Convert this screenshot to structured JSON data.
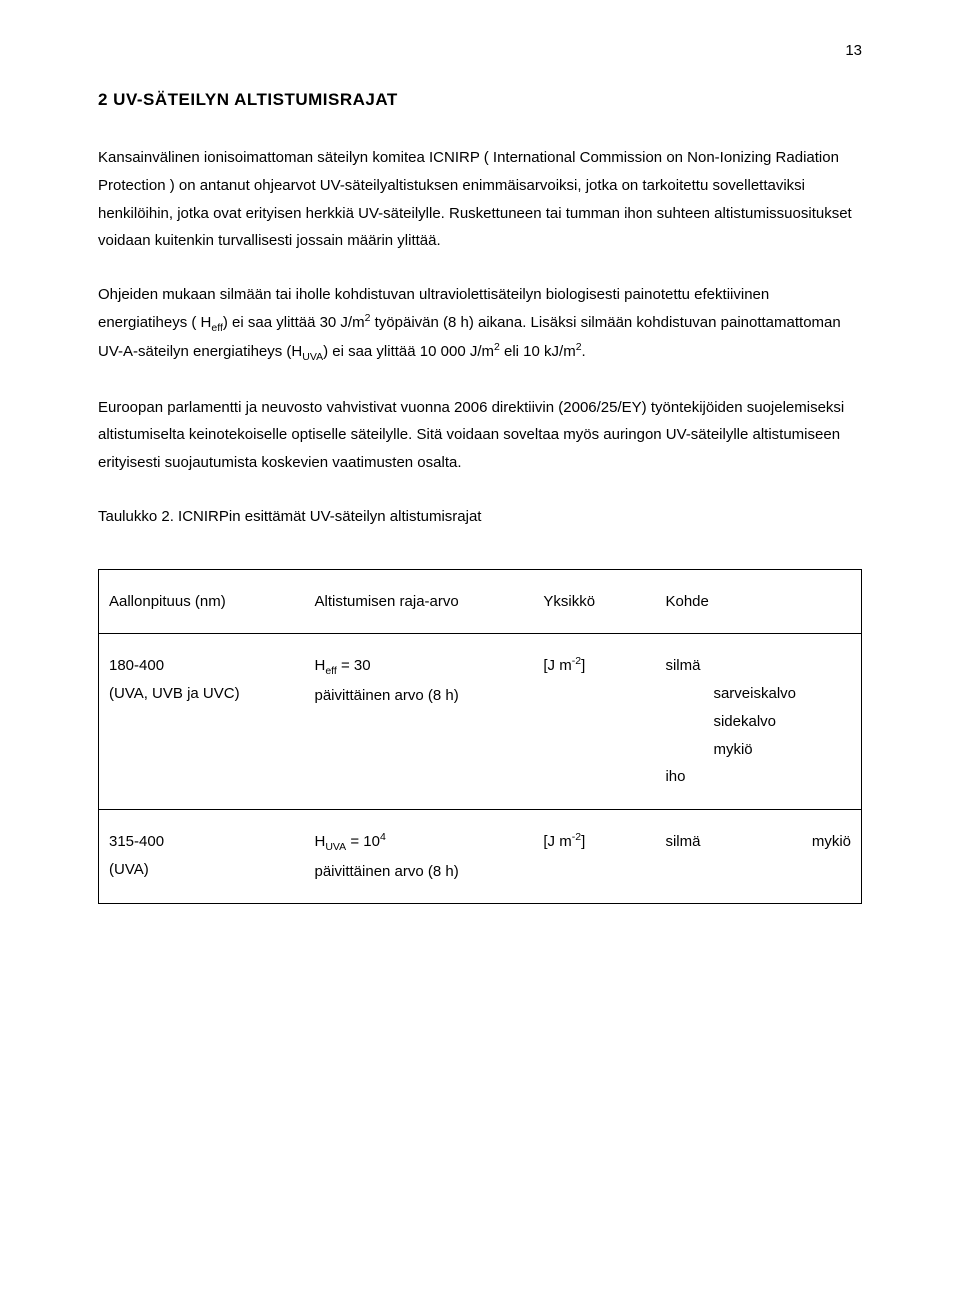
{
  "page_number": "13",
  "heading": "2 UV-SÄTEILYN ALTISTUMISRAJAT",
  "paragraphs": {
    "p1": "Kansainvälinen ionisoimattoman säteilyn komitea ICNIRP ( International Commission on Non-Ionizing Radiation Protection ) on antanut ohjearvot UV-säteilyaltistuksen enimmäisarvoiksi, jotka on tarkoitettu sovellettaviksi henkilöihin, jotka ovat erityisen herkkiä UV-säteilylle. Ruskettuneen tai tumman ihon suhteen altistumissuositukset voidaan kuitenkin turvallisesti jossain määrin ylittää.",
    "p2a": "Ohjeiden mukaan silmään tai iholle kohdistuvan ultraviolettisäteilyn biologisesti painotettu efektiivinen energiatiheys ( H",
    "p2a_sub": "eff",
    "p2b": ") ei saa ylittää 30 J/m",
    "p2b_sup": "2",
    "p2c": " työpäivän (8 h) aikana. Lisäksi silmään kohdistuvan painottamattoman UV-A-säteilyn energiatiheys (H",
    "p2c_sub": "UVA",
    "p2d": ") ei saa ylittää 10 000 J/m",
    "p2d_sup": "2",
    "p2e": " eli 10 kJ/m",
    "p2e_sup": "2",
    "p2f": ".",
    "p3": "Euroopan parlamentti ja neuvosto vahvistivat vuonna 2006 direktiivin (2006/25/EY) työntekijöiden suojelemiseksi altistumiselta keinotekoiselle optiselle säteilylle. Sitä voidaan soveltaa myös auringon UV-säteilylle altistumiseen erityisesti suojautumista koskevien vaatimusten osalta."
  },
  "table_caption": "Taulukko 2. ICNIRPin esittämät UV-säteilyn altistumisrajat",
  "table": {
    "headers": {
      "c1": "Aallonpituus (nm)",
      "c2": "Altistumisen raja-arvo",
      "c3": "Yksikkö",
      "c4": "Kohde"
    },
    "row1": {
      "wl1": "180-400",
      "wl2": "(UVA, UVB ja UVC)",
      "lim_sym": "H",
      "lim_sub": "eff",
      "lim_eq": " = 30",
      "lim_note": "päivittäinen arvo (8 h)",
      "unit_open": "[J m",
      "unit_sup": "-2",
      "unit_close": "]",
      "kohde_main": "silmä",
      "kohde_s1": "sarveiskalvo",
      "kohde_s2": "sidekalvo",
      "kohde_s3": "mykiö",
      "kohde_iho": "iho"
    },
    "row2": {
      "wl1": "315-400",
      "wl2": "(UVA)",
      "lim_sym": "H",
      "lim_sub": "UVA",
      "lim_eq": " = 10",
      "lim_sup": "4",
      "lim_note": "päivittäinen arvo (8 h)",
      "unit_open": "[J m",
      "unit_sup": "-2",
      "unit_close": "]",
      "kohde_main": "silmä",
      "kohde_right": "mykiö"
    }
  }
}
